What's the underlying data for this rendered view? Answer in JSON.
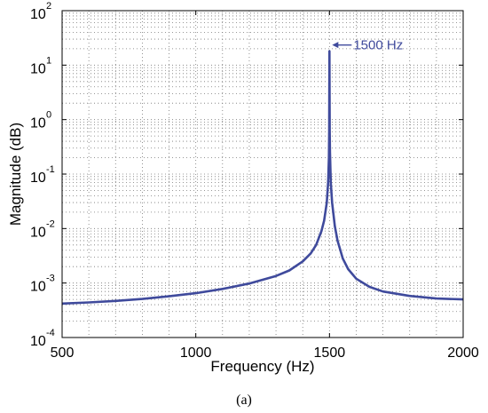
{
  "chart_data": {
    "type": "line",
    "xlabel": "Frequency (Hz)",
    "ylabel": "Magnitude (dB)",
    "xlim": [
      500,
      2000
    ],
    "ylim": [
      0.0001,
      100
    ],
    "yscale": "log",
    "grid": true,
    "x_ticks": [
      500,
      1000,
      1500,
      2000
    ],
    "x_tick_labels": [
      "500",
      "1000",
      "1500",
      "2000"
    ],
    "y_tick_base": "10",
    "y_tick_exponents": [
      "-4",
      "-3",
      "-2",
      "-1",
      "0",
      "1",
      "2"
    ],
    "series": [
      {
        "color": "#3f4a9c",
        "x": [
          500,
          600,
          700,
          800,
          900,
          1000,
          1100,
          1200,
          1300,
          1350,
          1400,
          1430,
          1450,
          1470,
          1480,
          1490,
          1495,
          1498,
          1499,
          1500,
          1501,
          1502,
          1505,
          1510,
          1520,
          1530,
          1550,
          1570,
          1600,
          1650,
          1700,
          1800,
          1900,
          2000
        ],
        "y": [
          0.00042,
          0.00044,
          0.00047,
          0.00051,
          0.00057,
          0.00065,
          0.00078,
          0.00098,
          0.00135,
          0.0017,
          0.0025,
          0.0035,
          0.005,
          0.009,
          0.014,
          0.03,
          0.07,
          0.2,
          0.6,
          18,
          0.6,
          0.25,
          0.07,
          0.03,
          0.011,
          0.006,
          0.0028,
          0.0018,
          0.0012,
          0.00085,
          0.0007,
          0.00058,
          0.00052,
          0.0005
        ]
      }
    ],
    "annotation": {
      "text": "1500 Hz",
      "x": 1500,
      "y": 18
    }
  },
  "caption": "(a)"
}
